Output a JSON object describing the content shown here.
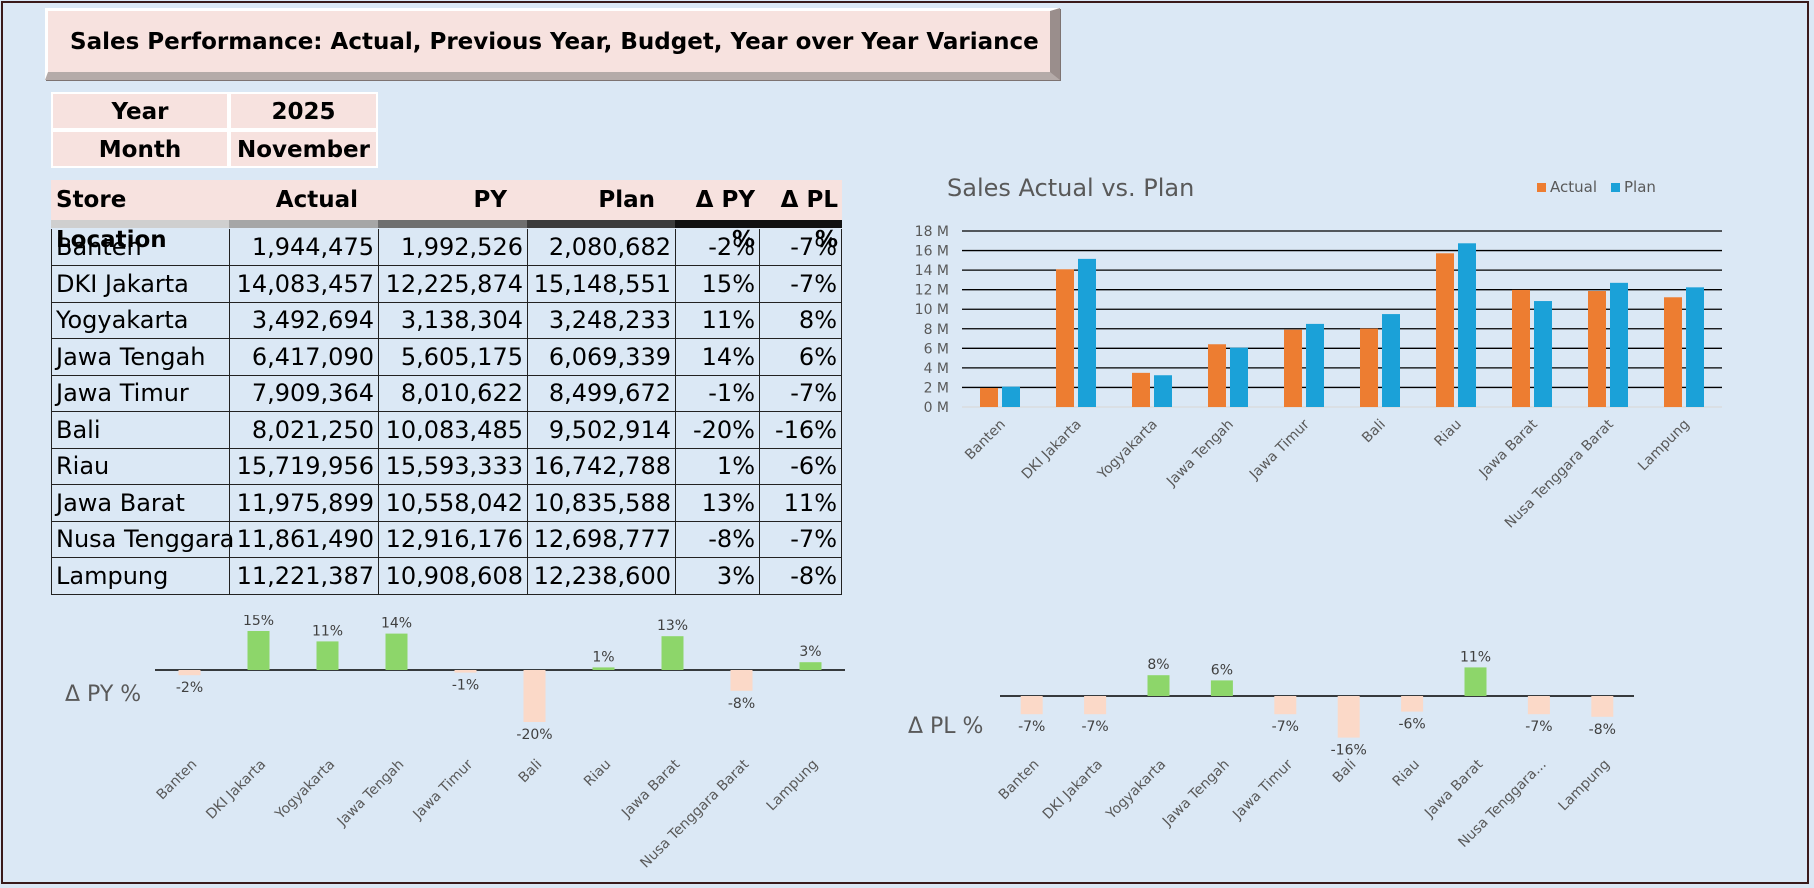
{
  "title": "Sales Performance: Actual, Previous Year, Budget, Year over Year Variance",
  "selectors": {
    "year_label": "Year",
    "year_value": "2025",
    "month_label": "Month",
    "month_value": "November"
  },
  "table": {
    "headers": [
      "Store Location",
      "Actual",
      "PY",
      "Plan",
      "Δ PY %",
      "Δ PL %"
    ],
    "rows": [
      [
        "Banten",
        "1,944,475",
        "1,992,526",
        "2,080,682",
        "-2%",
        "-7%"
      ],
      [
        "DKI Jakarta",
        "14,083,457",
        "12,225,874",
        "15,148,551",
        "15%",
        "-7%"
      ],
      [
        "Yogyakarta",
        "3,492,694",
        "3,138,304",
        "3,248,233",
        "11%",
        "8%"
      ],
      [
        "Jawa Tengah",
        "6,417,090",
        "5,605,175",
        "6,069,339",
        "14%",
        "6%"
      ],
      [
        "Jawa Timur",
        "7,909,364",
        "8,010,622",
        "8,499,672",
        "-1%",
        "-7%"
      ],
      [
        "Bali",
        "8,021,250",
        "10,083,485",
        "9,502,914",
        "-20%",
        "-16%"
      ],
      [
        "Riau",
        "15,719,956",
        "15,593,333",
        "16,742,788",
        "1%",
        "-6%"
      ],
      [
        "Jawa Barat",
        "11,975,899",
        "10,558,042",
        "10,835,588",
        "13%",
        "11%"
      ],
      [
        "Nusa Tenggara",
        "11,861,490",
        "12,916,176",
        "12,698,777",
        "-8%",
        "-7%"
      ],
      [
        "Lampung",
        "11,221,387",
        "10,908,608",
        "12,238,600",
        "3%",
        "-8%"
      ]
    ]
  },
  "colors": {
    "actual": "#ed7d31",
    "plan": "#1ba1d8",
    "positive": "#8dd66a",
    "negative": "#fbd9c8",
    "header_bg": "#f7e2df",
    "background": "#dbe8f5"
  },
  "chart_data": [
    {
      "type": "bar",
      "title": "Sales Actual vs. Plan",
      "categories": [
        "Banten",
        "DKI Jakarta",
        "Yogyakarta",
        "Jawa Tengah",
        "Jawa Timur",
        "Bali",
        "Riau",
        "Jawa Barat",
        "Nusa Tenggara Barat",
        "Lampung"
      ],
      "series": [
        {
          "name": "Actual",
          "values": [
            1944475,
            14083457,
            3492694,
            6417090,
            7909364,
            8021250,
            15719956,
            11975899,
            11861490,
            11221387
          ]
        },
        {
          "name": "Plan",
          "values": [
            2080682,
            15148551,
            3248233,
            6069339,
            8499672,
            9502914,
            16742788,
            10835588,
            12698777,
            12238600
          ]
        }
      ],
      "yticks": [
        "0 M",
        "2 M",
        "4 M",
        "6 M",
        "8 M",
        "10 M",
        "12 M",
        "14 M",
        "16 M",
        "18 M"
      ],
      "ylim": [
        0,
        18000000
      ],
      "legend": "top-right",
      "grid": true
    },
    {
      "type": "bar",
      "title": "Δ PY %",
      "categories": [
        "Banten",
        "DKI Jakarta",
        "Yogyakarta",
        "Jawa Tengah",
        "Jawa Timur",
        "Bali",
        "Riau",
        "Jawa Barat",
        "Nusa Tenggara Barat",
        "Lampung"
      ],
      "values": [
        -2,
        15,
        11,
        14,
        -1,
        -20,
        1,
        13,
        -8,
        3
      ],
      "labels": [
        "-2%",
        "15%",
        "11%",
        "14%",
        "-1%",
        "-20%",
        "1%",
        "13%",
        "-8%",
        "3%"
      ]
    },
    {
      "type": "bar",
      "title": "Δ PL %",
      "categories": [
        "Banten",
        "DKI Jakarta",
        "Yogyakarta",
        "Jawa Tengah",
        "Jawa Timur",
        "Bali",
        "Riau",
        "Jawa Barat",
        "Nusa Tenggara...",
        "Lampung"
      ],
      "values": [
        -7,
        -7,
        8,
        6,
        -7,
        -16,
        -6,
        11,
        -7,
        -8
      ],
      "labels": [
        "-7%",
        "-7%",
        "8%",
        "6%",
        "-7%",
        "-16%",
        "-6%",
        "11%",
        "-7%",
        "-8%"
      ]
    }
  ]
}
